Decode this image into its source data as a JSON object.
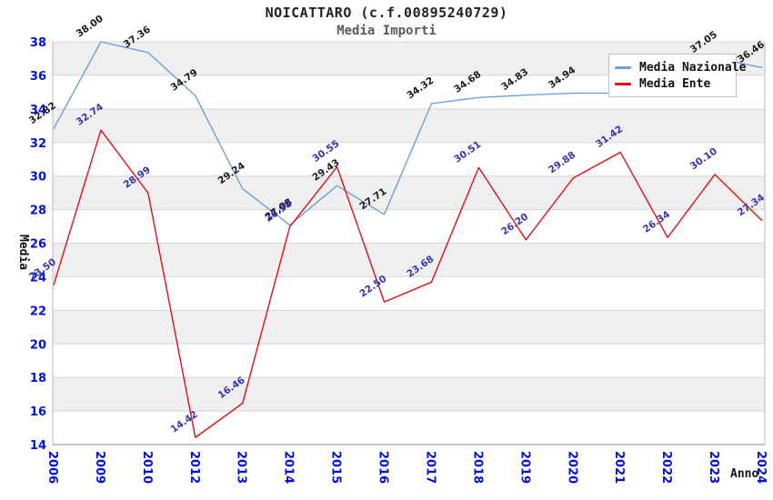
{
  "chart_data": {
    "type": "line",
    "title": "NOICATTARO (c.f.00895240729)",
    "subtitle": "Media Importi",
    "xlabel": "Anno",
    "ylabel": "Media",
    "categories": [
      "2006",
      "2009",
      "2010",
      "2012",
      "2013",
      "2014",
      "2015",
      "2016",
      "2017",
      "2018",
      "2019",
      "2020",
      "2021",
      "2022",
      "2023",
      "2024"
    ],
    "series": [
      {
        "name": "Media Nazionale",
        "color": "#6fa0d8",
        "label_color": "#1a1a1a",
        "values": [
          32.82,
          38.0,
          37.36,
          34.79,
          29.24,
          27.08,
          29.43,
          27.71,
          34.32,
          34.68,
          34.83,
          34.94,
          34.95,
          35.05,
          37.05,
          36.46
        ],
        "hidden_label_indices": [
          12,
          13
        ]
      },
      {
        "name": "Media Ente",
        "color": "#e01010",
        "label_color": "#3535ae",
        "values": [
          23.5,
          32.74,
          28.99,
          14.42,
          16.46,
          26.98,
          30.55,
          22.5,
          23.68,
          30.51,
          26.2,
          29.88,
          31.42,
          26.34,
          30.1,
          27.34
        ],
        "hidden_label_indices": []
      }
    ],
    "ylim": [
      14,
      38
    ],
    "y_ticks": [
      14,
      16,
      18,
      20,
      22,
      24,
      26,
      28,
      30,
      32,
      34,
      36,
      38
    ],
    "grid": "horizontal-bands",
    "band_color": "#efefef",
    "gridline_color": "#d7d7d7",
    "tick_label_color": "#0010d6",
    "legend_position": "top-right"
  }
}
